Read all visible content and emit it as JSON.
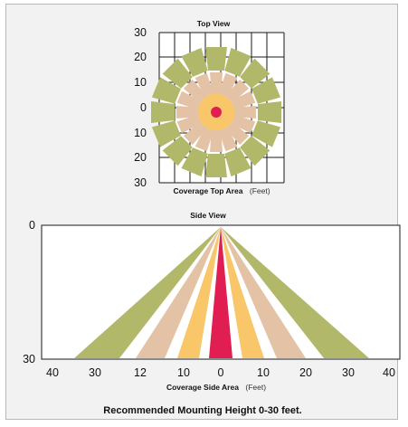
{
  "top_view": {
    "title": "Top View",
    "y_ticks": [
      "30",
      "20",
      "10",
      "0",
      "10",
      "20",
      "30"
    ],
    "caption_bold": "Coverage Top Area",
    "caption_unit": "(Feet)",
    "ring_colors": [
      "#b2b86a",
      "#e3c2a5",
      "#f9c769"
    ],
    "center_color": "#e01e52"
  },
  "side_view": {
    "title": "Side View",
    "y_ticks": [
      "0",
      "30"
    ],
    "x_ticks": [
      "40",
      "30",
      "12",
      "10",
      "0",
      "10",
      "20",
      "30",
      "40"
    ],
    "caption_bold": "Coverage Side Area",
    "caption_unit": "(Feet)",
    "zone_colors": [
      "#b2b86a",
      "#e3c2a5",
      "#f9c769",
      "#e01e52"
    ]
  },
  "footer": "Recommended Mounting Height 0-30 feet."
}
